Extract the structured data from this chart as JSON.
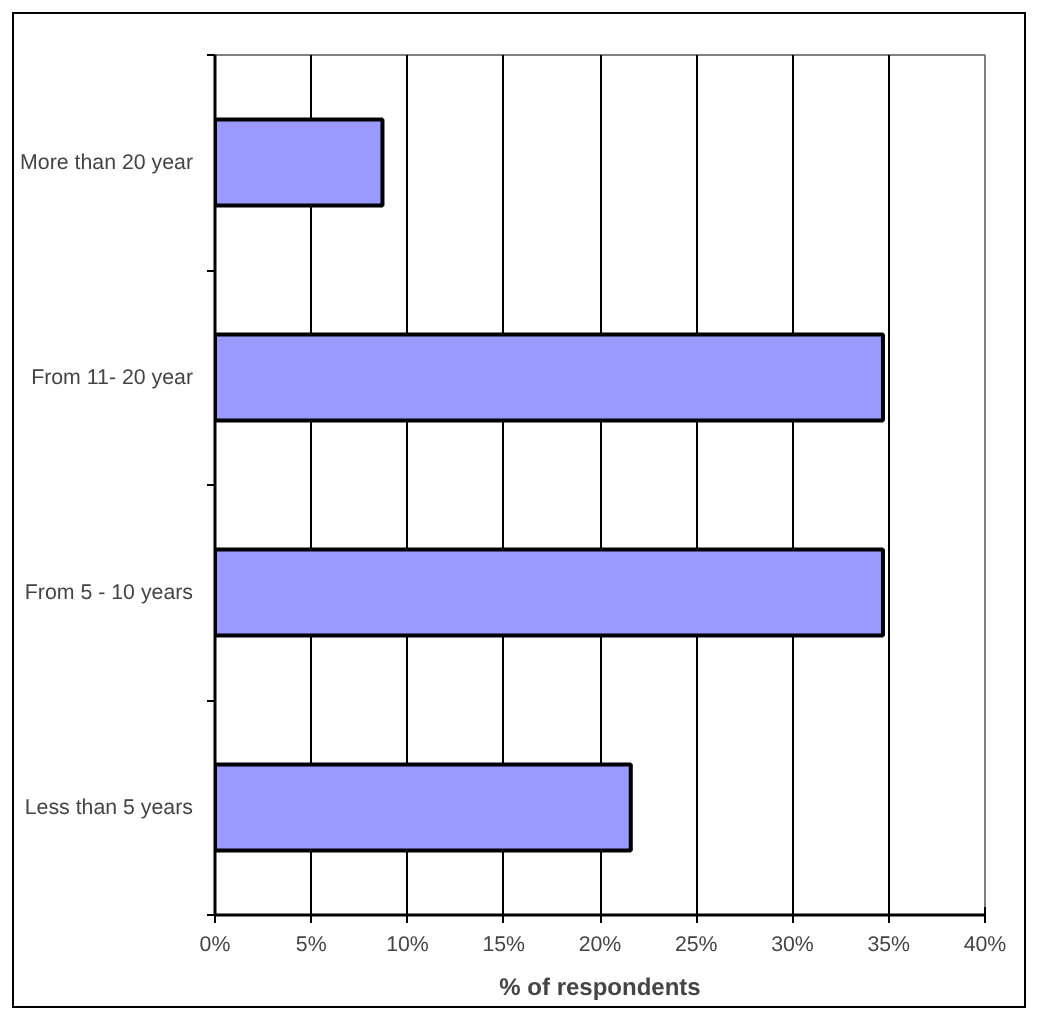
{
  "chart_data": {
    "type": "bar",
    "orientation": "horizontal",
    "xlabel": "% of respondents",
    "categories": [
      "More than 20 year",
      "From 11- 20 year",
      "From 5 - 10 years",
      "Less than 5 years"
    ],
    "values": [
      8.7,
      34.7,
      34.7,
      21.6
    ],
    "color": "#9999ff",
    "xlim": [
      0,
      40
    ],
    "xticks": [
      {
        "value": 0,
        "label": "0%"
      },
      {
        "value": 5,
        "label": "5%"
      },
      {
        "value": 10,
        "label": "10%"
      },
      {
        "value": 15,
        "label": "15%"
      },
      {
        "value": 20,
        "label": "20%"
      },
      {
        "value": 25,
        "label": "25%"
      },
      {
        "value": 30,
        "label": "30%"
      },
      {
        "value": 35,
        "label": "35%"
      },
      {
        "value": 40,
        "label": "40%"
      }
    ],
    "grid": "x"
  }
}
